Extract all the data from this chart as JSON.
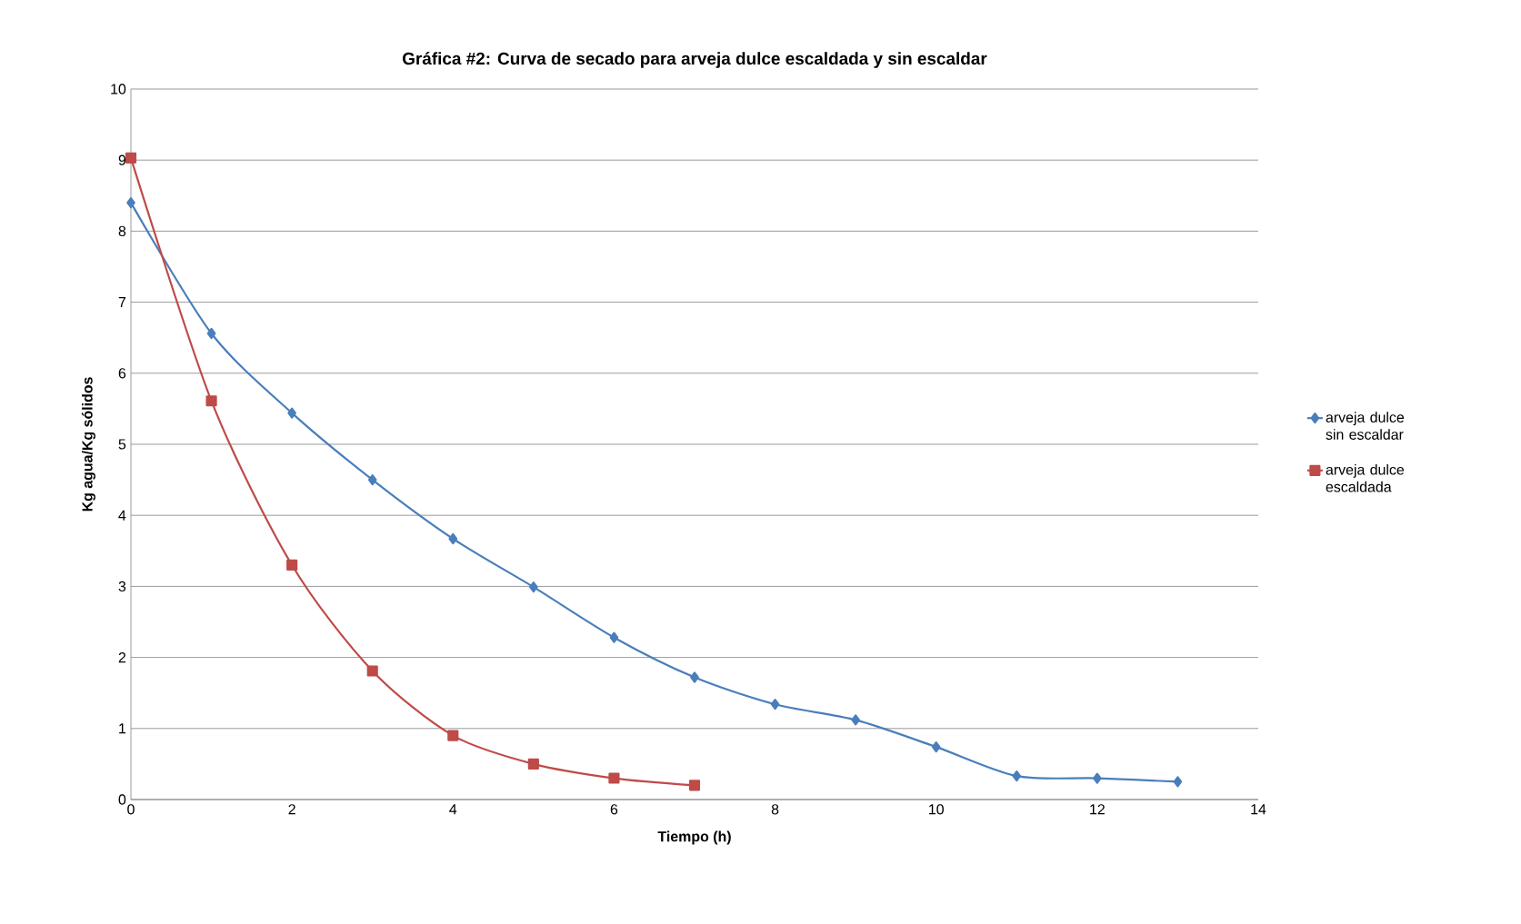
{
  "chart_data": {
    "type": "line",
    "title": "Gráfica #2: Curva de secado para arveja dulce escaldada y sin escaldar",
    "xlabel": "Tiempo (h)",
    "ylabel": "Kg agua/Kg sólidos",
    "xlim": [
      0,
      14
    ],
    "xticks": [
      0,
      2,
      4,
      6,
      8,
      10,
      12,
      14
    ],
    "ylim": [
      0,
      10
    ],
    "yticks": [
      0,
      1,
      2,
      3,
      4,
      5,
      6,
      7,
      8,
      9,
      10
    ],
    "grid": "y",
    "legend": "right",
    "line_style": "solid",
    "series": [
      {
        "name": "arveja dulce sin escaldar",
        "color": "#4a7ebb",
        "marker": "diamond",
        "x": [
          0,
          1,
          2,
          3,
          4,
          5,
          6,
          7,
          8,
          9,
          10,
          11,
          12,
          13
        ],
        "values": [
          8.4,
          6.56,
          5.44,
          4.5,
          3.67,
          2.99,
          2.28,
          1.72,
          1.34,
          1.12,
          0.74,
          0.33,
          0.3,
          0.25
        ]
      },
      {
        "name": "arveja dulce escaldada",
        "color": "#be4b48",
        "marker": "square",
        "x": [
          0,
          1,
          2,
          3,
          4,
          5,
          6,
          7
        ],
        "values": [
          9.03,
          5.61,
          3.3,
          1.81,
          0.9,
          0.5,
          0.3,
          0.2
        ]
      }
    ]
  }
}
